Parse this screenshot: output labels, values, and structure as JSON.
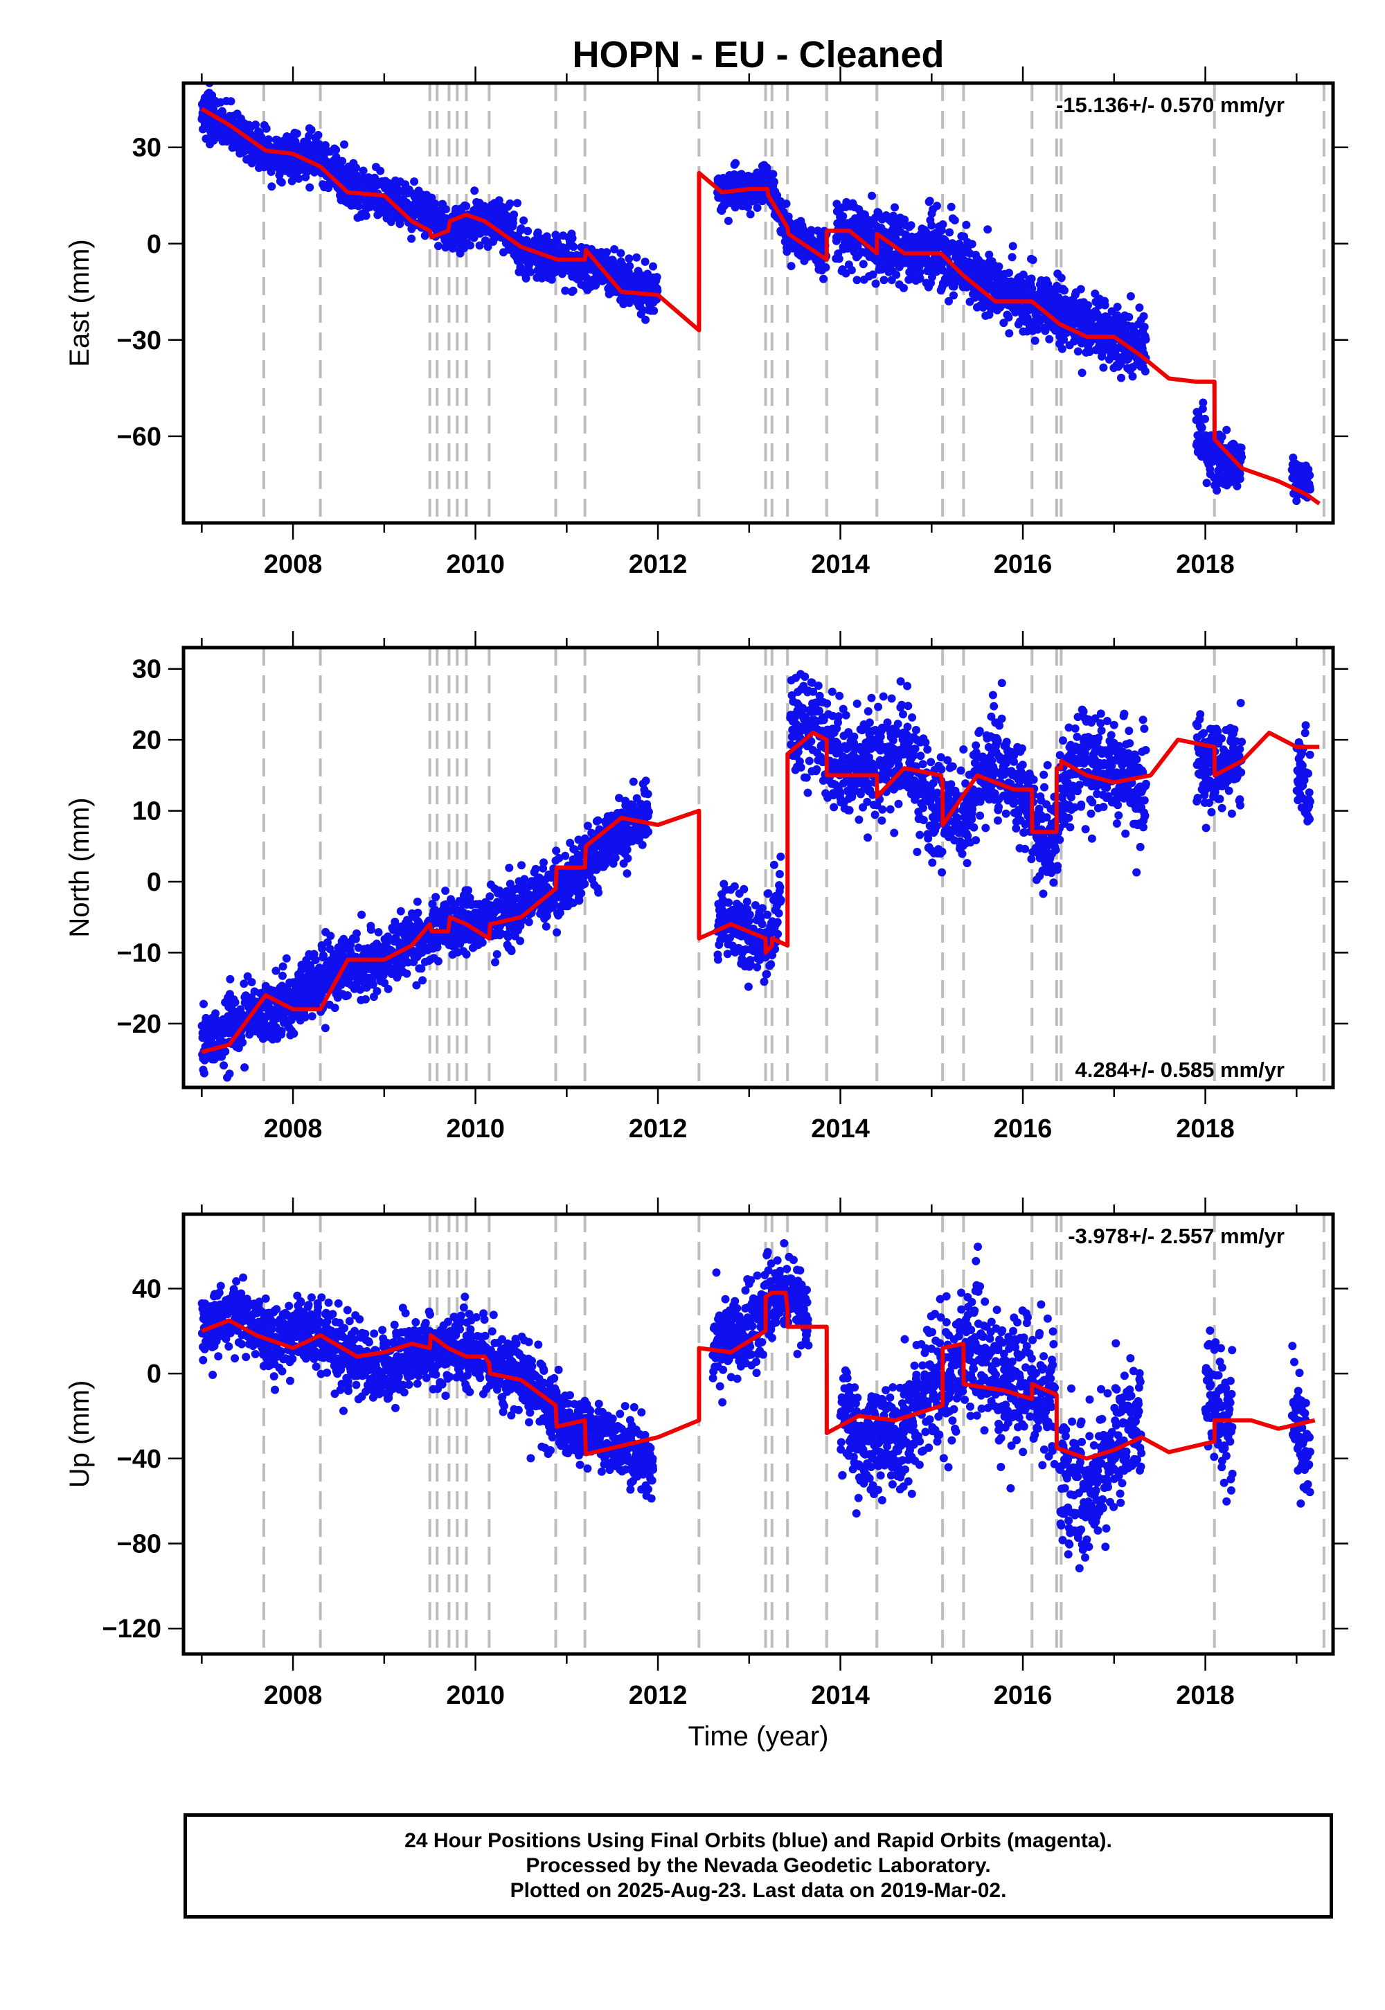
{
  "title": "HOPN  - EU - Cleaned",
  "footer": {
    "line1": "24 Hour Positions Using Final Orbits (blue) and Rapid Orbits (magenta).",
    "line2": "Processed by the Nevada Geodetic Laboratory.",
    "line3": "Plotted on 2025-Aug-23. Last data on 2019-Mar-02."
  },
  "colors": {
    "final_orbits": "#1010ee",
    "model": "#ee0000",
    "event_lines": "#bdbdbd"
  },
  "chart_data": [
    {
      "type": "scatter",
      "component": "east",
      "ylabel": "East (mm)",
      "xlabel": "",
      "rate_label": "-15.136+/- 0.570 mm/yr",
      "xlim": [
        2006.8,
        2019.4
      ],
      "ylim": [
        -87,
        50
      ],
      "xticks": [
        2008,
        2010,
        2012,
        2014,
        2016,
        2018
      ],
      "yticks": [
        30,
        0,
        -30,
        -60
      ],
      "ytick_labels": [
        "30",
        "0",
        "−30",
        "−60"
      ],
      "grid": false,
      "event_years": [
        2007.68,
        2008.3,
        2009.5,
        2009.58,
        2009.71,
        2009.8,
        2009.9,
        2010.15,
        2010.88,
        2011.2,
        2012.45,
        2013.18,
        2013.25,
        2013.42,
        2013.85,
        2014.4,
        2015.12,
        2015.35,
        2016.1,
        2016.37,
        2016.42,
        2018.1,
        2019.3
      ],
      "series": [
        {
          "kind": "daily_positions",
          "segments": [
            {
              "x": [
                2007.0,
                2007.4,
                2007.8,
                2008.2,
                2008.6,
                2009.0,
                2009.4,
                2009.8,
                2010.2,
                2010.6,
                2011.0,
                2011.4,
                2011.7,
                2012.0
              ],
              "y": [
                41,
                34,
                26,
                28,
                19,
                14,
                9,
                4,
                8,
                -3,
                -6,
                -8,
                -13,
                -16
              ],
              "scatter": 3.5
            },
            {
              "x": [
                2012.65,
                2012.9,
                2013.2,
                2013.45,
                2013.85
              ],
              "y": [
                17,
                16,
                19,
                2,
                -2
              ],
              "scatter": 3
            },
            {
              "x": [
                2013.95,
                2014.3,
                2014.7,
                2015.0,
                2015.4,
                2015.8,
                2016.2,
                2016.6,
                2017.0,
                2017.35
              ],
              "y": [
                2,
                2,
                -3,
                -2,
                -8,
                -16,
                -19,
                -24,
                -29,
                -33
              ],
              "scatter": 5
            },
            {
              "x": [
                2017.9,
                2018.1,
                2018.4
              ],
              "y": [
                -58,
                -66,
                -70
              ],
              "scatter": 4
            },
            {
              "x": [
                2018.95,
                2019.15
              ],
              "y": [
                -72,
                -76
              ],
              "scatter": 3
            }
          ]
        },
        {
          "kind": "model",
          "x": [
            2007.0,
            2007.3,
            2007.7,
            2008.0,
            2008.3,
            2008.6,
            2009.0,
            2009.3,
            2009.5,
            2009.52,
            2009.7,
            2009.72,
            2009.9,
            2010.1,
            2010.5,
            2010.9,
            2011.2,
            2011.21,
            2011.6,
            2012.0,
            2012.45,
            2012.451,
            2012.7,
            2013.0,
            2013.2,
            2013.21,
            2013.42,
            2013.43,
            2013.85,
            2013.851,
            2014.1,
            2014.4,
            2014.401,
            2014.7,
            2015.1,
            2015.35,
            2015.7,
            2016.1,
            2016.4,
            2016.7,
            2017.0,
            2017.3,
            2017.6,
            2017.9,
            2018.1,
            2018.101,
            2018.4,
            2018.8,
            2019.1,
            2019.25
          ],
          "y": [
            42,
            37,
            29,
            28,
            24,
            16,
            15,
            7,
            4,
            2,
            4,
            7,
            9,
            7,
            -1,
            -5,
            -5,
            -2,
            -15,
            -16,
            -27,
            22,
            16,
            17,
            17,
            15,
            5,
            3,
            -5,
            4,
            4,
            -3,
            3,
            -3,
            -3,
            -10,
            -18,
            -18,
            -25,
            -29,
            -29,
            -35,
            -42,
            -43,
            -43,
            -61,
            -70,
            -74,
            -78,
            -81
          ]
        }
      ]
    },
    {
      "type": "scatter",
      "component": "north",
      "ylabel": "North (mm)",
      "xlabel": "",
      "rate_label": "4.284+/- 0.585 mm/yr",
      "xlim": [
        2006.8,
        2019.4
      ],
      "ylim": [
        -29,
        33
      ],
      "xticks": [
        2008,
        2010,
        2012,
        2014,
        2016,
        2018
      ],
      "yticks": [
        30,
        20,
        10,
        0,
        -10,
        -20
      ],
      "ytick_labels": [
        "30",
        "20",
        "10",
        "0",
        "−10",
        "−20"
      ],
      "grid": false,
      "event_years": [
        2007.68,
        2008.3,
        2009.5,
        2009.58,
        2009.71,
        2009.8,
        2009.9,
        2010.15,
        2010.88,
        2011.2,
        2012.45,
        2013.18,
        2013.25,
        2013.42,
        2013.85,
        2014.4,
        2015.12,
        2015.35,
        2016.1,
        2016.37,
        2016.42,
        2018.1,
        2019.3
      ],
      "series": [
        {
          "kind": "daily_positions",
          "segments": [
            {
              "x": [
                2007.0,
                2007.5,
                2008.0,
                2008.5,
                2009.0,
                2009.5,
                2010.0,
                2010.5,
                2011.0,
                2011.5,
                2011.9
              ],
              "y": [
                -23,
                -19,
                -17,
                -12,
                -11,
                -7,
                -6,
                -3,
                0,
                6,
                10
              ],
              "scatter": 2.2
            },
            {
              "x": [
                2012.65,
                2012.9,
                2013.2,
                2013.35
              ],
              "y": [
                -4,
                -7,
                -9,
                -2
              ],
              "scatter": 3
            },
            {
              "x": [
                2013.45,
                2013.7,
                2014.0,
                2014.4,
                2014.7,
                2015.0,
                2015.3,
                2015.7,
                2016.0,
                2016.3,
                2016.6,
                2017.0,
                2017.35
              ],
              "y": [
                20,
                22,
                16,
                16,
                19,
                10,
                9,
                17,
                12,
                5,
                18,
                16,
                12
              ],
              "scatter": 3.5
            },
            {
              "x": [
                2017.9,
                2018.2,
                2018.4
              ],
              "y": [
                18,
                16,
                18
              ],
              "scatter": 3
            },
            {
              "x": [
                2019.0,
                2019.15
              ],
              "y": [
                16,
                13
              ],
              "scatter": 3
            }
          ]
        },
        {
          "kind": "model",
          "x": [
            2007.0,
            2007.3,
            2007.7,
            2008.0,
            2008.3,
            2008.6,
            2009.0,
            2009.3,
            2009.5,
            2009.52,
            2009.7,
            2009.72,
            2009.9,
            2010.15,
            2010.16,
            2010.5,
            2010.88,
            2010.89,
            2011.2,
            2011.21,
            2011.6,
            2012.0,
            2012.45,
            2012.451,
            2012.8,
            2013.18,
            2013.181,
            2013.25,
            2013.251,
            2013.42,
            2013.421,
            2013.7,
            2013.85,
            2013.851,
            2014.2,
            2014.4,
            2014.401,
            2014.7,
            2015.1,
            2015.12,
            2015.121,
            2015.5,
            2015.9,
            2016.1,
            2016.101,
            2016.37,
            2016.371,
            2016.42,
            2016.421,
            2016.7,
            2017.0,
            2017.4,
            2017.7,
            2018.1,
            2018.101,
            2018.4,
            2018.7,
            2019.0,
            2019.25
          ],
          "y": [
            -24,
            -23,
            -16,
            -18,
            -18,
            -11,
            -11,
            -9,
            -6,
            -7,
            -7,
            -5,
            -6,
            -8,
            -6,
            -5,
            -1,
            2,
            2,
            5,
            9,
            8,
            10,
            -8,
            -6,
            -8,
            -10,
            -9,
            -8,
            -9,
            18,
            21,
            20,
            15,
            15,
            15,
            12,
            16,
            15,
            14,
            8,
            15,
            13,
            13,
            7,
            7,
            16,
            16,
            17,
            15,
            14,
            15,
            20,
            19,
            15,
            17,
            21,
            19,
            19
          ]
        }
      ]
    },
    {
      "type": "scatter",
      "component": "up",
      "ylabel": "Up (mm)",
      "xlabel": "Time (year)",
      "rate_label": "-3.978+/- 2.557 mm/yr",
      "xlim": [
        2006.8,
        2019.4
      ],
      "ylim": [
        -132,
        75
      ],
      "xticks": [
        2008,
        2010,
        2012,
        2014,
        2016,
        2018
      ],
      "yticks": [
        40,
        0,
        -40,
        -80,
        -120
      ],
      "ytick_labels": [
        "40",
        "0",
        "−40",
        "−80",
        "−120"
      ],
      "grid": false,
      "event_years": [
        2007.68,
        2008.3,
        2009.5,
        2009.58,
        2009.71,
        2009.8,
        2009.9,
        2010.15,
        2010.88,
        2011.2,
        2012.45,
        2013.18,
        2013.25,
        2013.42,
        2013.85,
        2014.4,
        2015.12,
        2015.35,
        2016.1,
        2016.37,
        2016.42,
        2018.1,
        2019.3
      ],
      "series": [
        {
          "kind": "daily_positions",
          "segments": [
            {
              "x": [
                2007.0,
                2007.4,
                2007.8,
                2008.2,
                2008.6,
                2009.0,
                2009.4,
                2009.8,
                2010.2,
                2010.6,
                2011.0,
                2011.4,
                2011.7,
                2011.95
              ],
              "y": [
                22,
                28,
                14,
                20,
                8,
                3,
                10,
                14,
                5,
                -5,
                -25,
                -30,
                -36,
                -45
              ],
              "scatter": 8
            },
            {
              "x": [
                2012.6,
                2012.9,
                2013.2,
                2013.45,
                2013.65
              ],
              "y": [
                10,
                18,
                32,
                40,
                25
              ],
              "scatter": 9
            },
            {
              "x": [
                2014.0,
                2014.3,
                2014.6,
                2014.9,
                2015.2,
                2015.5,
                2015.8,
                2016.1,
                2016.35
              ],
              "y": [
                -20,
                -35,
                -30,
                -10,
                0,
                10,
                -5,
                -5,
                -15
              ],
              "scatter": 15
            },
            {
              "x": [
                2016.4,
                2016.7,
                2017.0,
                2017.3
              ],
              "y": [
                -50,
                -60,
                -35,
                -20
              ],
              "scatter": 15
            },
            {
              "x": [
                2018.0,
                2018.3
              ],
              "y": [
                -10,
                -25
              ],
              "scatter": 14
            },
            {
              "x": [
                2018.95,
                2019.15
              ],
              "y": [
                -20,
                -40
              ],
              "scatter": 12
            }
          ]
        },
        {
          "kind": "model",
          "x": [
            2007.0,
            2007.3,
            2007.6,
            2008.0,
            2008.3,
            2008.7,
            2009.0,
            2009.3,
            2009.5,
            2009.51,
            2009.7,
            2009.9,
            2010.1,
            2010.15,
            2010.16,
            2010.5,
            2010.88,
            2010.89,
            2011.2,
            2011.21,
            2011.6,
            2012.0,
            2012.45,
            2012.451,
            2012.8,
            2013.18,
            2013.181,
            2013.25,
            2013.4,
            2013.42,
            2013.421,
            2013.85,
            2013.851,
            2014.2,
            2014.6,
            2015.12,
            2015.121,
            2015.35,
            2015.351,
            2015.8,
            2016.1,
            2016.101,
            2016.37,
            2016.371,
            2016.7,
            2017.0,
            2017.3,
            2017.6,
            2018.1,
            2018.101,
            2018.5,
            2018.8,
            2019.2
          ],
          "y": [
            20,
            25,
            18,
            12,
            18,
            8,
            10,
            14,
            12,
            18,
            12,
            8,
            8,
            5,
            0,
            -3,
            -15,
            -25,
            -22,
            -38,
            -34,
            -30,
            -22,
            12,
            10,
            20,
            36,
            38,
            38,
            30,
            22,
            22,
            -28,
            -20,
            -22,
            -15,
            12,
            14,
            -5,
            -8,
            -12,
            -5,
            -10,
            -35,
            -40,
            -36,
            -30,
            -37,
            -32,
            -22,
            -22,
            -26,
            -22
          ]
        }
      ]
    }
  ]
}
